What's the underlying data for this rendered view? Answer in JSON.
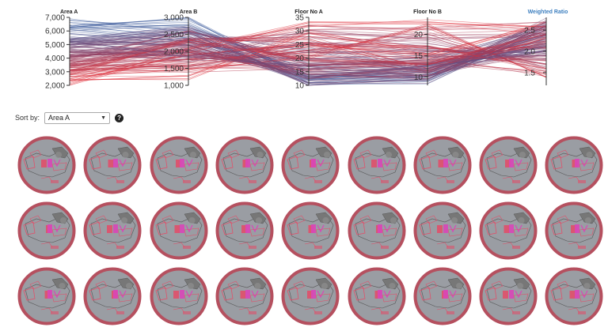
{
  "chart_data": {
    "type": "parallel-coordinates",
    "axes": [
      {
        "name": "Area A",
        "range": [
          2000,
          7000
        ],
        "ticks": [
          "7,000",
          "6,000",
          "5,000",
          "4,000",
          "3,000",
          "2,000"
        ]
      },
      {
        "name": "Area B",
        "range": [
          1000,
          3000
        ],
        "ticks": [
          "3,000",
          "2,500",
          "2,000",
          "1,500",
          "1,000"
        ]
      },
      {
        "name": "Floor No A",
        "range": [
          10,
          35
        ],
        "ticks": [
          "35",
          "30",
          "25",
          "20",
          "15",
          "10"
        ]
      },
      {
        "name": "Floor No B",
        "range": [
          8,
          24
        ],
        "ticks": [
          "20",
          "15",
          "10"
        ]
      },
      {
        "name": "Weighted Ratio",
        "range": [
          1.2,
          2.8
        ],
        "ticks": [
          "2.5",
          "2.0",
          "1.5"
        ],
        "highlighted": true
      }
    ],
    "color_low": "#3a5a9a",
    "color_high": "#e0303a",
    "sample_lines": [
      [
        6400,
        2950,
        12,
        10,
        2.6
      ],
      [
        6800,
        2600,
        11,
        9,
        2.5
      ],
      [
        6200,
        2400,
        13,
        11,
        2.4
      ],
      [
        6000,
        2800,
        14,
        10,
        2.3
      ],
      [
        5800,
        2300,
        16,
        13,
        2.2
      ],
      [
        5600,
        2100,
        12,
        12,
        2.1
      ],
      [
        5400,
        2700,
        18,
        14,
        2.6
      ],
      [
        5200,
        1900,
        20,
        15,
        2.0
      ],
      [
        5000,
        2200,
        22,
        16,
        1.9
      ],
      [
        4800,
        2500,
        24,
        11,
        2.7
      ],
      [
        4600,
        1800,
        26,
        17,
        1.8
      ],
      [
        4400,
        2000,
        15,
        12,
        2.5
      ],
      [
        4200,
        2300,
        28,
        18,
        1.7
      ],
      [
        4000,
        1700,
        30,
        19,
        2.4
      ],
      [
        3800,
        2600,
        19,
        13,
        2.2
      ],
      [
        3600,
        1600,
        23,
        20,
        1.6
      ],
      [
        3400,
        2100,
        32,
        21,
        2.6
      ],
      [
        3200,
        1500,
        17,
        14,
        1.5
      ],
      [
        3000,
        2400,
        27,
        12,
        2.3
      ],
      [
        2800,
        1400,
        21,
        22,
        1.4
      ],
      [
        2600,
        1900,
        25,
        15,
        2.7
      ],
      [
        2400,
        1200,
        29,
        16,
        2.1
      ],
      [
        2200,
        2050,
        33,
        23,
        2.5
      ],
      [
        4100,
        2150,
        14,
        11,
        2.0
      ],
      [
        3700,
        1950,
        16,
        13,
        2.2
      ],
      [
        4300,
        2250,
        13,
        12,
        2.4
      ],
      [
        3900,
        2050,
        15,
        10,
        2.6
      ],
      [
        4500,
        1850,
        17,
        14,
        1.9
      ],
      [
        3500,
        2350,
        19,
        11,
        2.3
      ],
      [
        4700,
        2450,
        12,
        9,
        2.5
      ],
      [
        3300,
        1750,
        22,
        15,
        1.8
      ],
      [
        5100,
        2550,
        11,
        10,
        2.7
      ],
      [
        2900,
        1650,
        24,
        17,
        1.6
      ],
      [
        5300,
        2650,
        14,
        12,
        2.1
      ],
      [
        3100,
        2250,
        20,
        13,
        2.4
      ],
      [
        4900,
        1950,
        16,
        11,
        2.2
      ]
    ]
  },
  "sort": {
    "label": "Sort by:",
    "selected": "Area A",
    "help_icon": "question-icon",
    "help_glyph": "?"
  },
  "thumbnails": {
    "rows": 3,
    "cols": 9,
    "ring_color": "#b5505f",
    "fill_color": "#9a9da3",
    "shape_color": "#e0506a",
    "accent_color": "#d946b8"
  }
}
